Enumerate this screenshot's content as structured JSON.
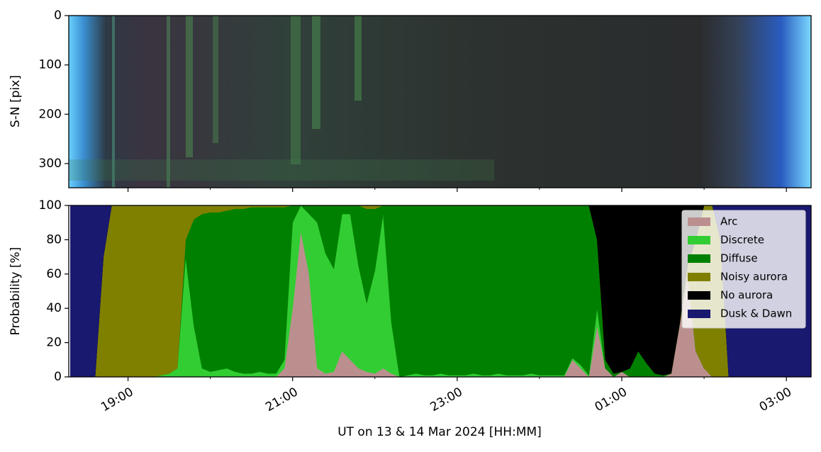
{
  "chart_data": [
    {
      "type": "image",
      "ylabel": "S-N [pix]",
      "ylim": [
        349,
        0
      ],
      "yticks": [
        0,
        100,
        200,
        300
      ],
      "xlim": [
        18.28,
        27.3
      ]
    },
    {
      "type": "stacked_area",
      "xlabel": "UT on 13 & 14 Mar 2024 [HH:MM]",
      "ylabel": "Probability [%]",
      "xlim": [
        18.28,
        27.3
      ],
      "ylim": [
        0,
        100
      ],
      "yticks": [
        0,
        20,
        40,
        60,
        80,
        100
      ],
      "xticks": [
        {
          "value": 19,
          "label": "19:00"
        },
        {
          "value": 21,
          "label": "21:00"
        },
        {
          "value": 23,
          "label": "23:00"
        },
        {
          "value": 25,
          "label": "01:00"
        },
        {
          "value": 27,
          "label": "03:00"
        }
      ],
      "xminorticks": [
        20,
        22,
        24,
        26
      ],
      "legend": "upper right",
      "x": [
        18.3,
        18.4,
        18.5,
        18.6,
        18.7,
        18.8,
        18.9,
        19.0,
        19.1,
        19.2,
        19.3,
        19.4,
        19.5,
        19.6,
        19.7,
        19.8,
        19.9,
        20.0,
        20.1,
        20.2,
        20.3,
        20.4,
        20.5,
        20.6,
        20.7,
        20.8,
        20.9,
        21.0,
        21.1,
        21.2,
        21.3,
        21.4,
        21.5,
        21.6,
        21.7,
        21.8,
        21.9,
        22.0,
        22.1,
        22.2,
        22.3,
        22.4,
        22.5,
        22.6,
        22.7,
        22.8,
        22.9,
        23.0,
        23.1,
        23.2,
        23.3,
        23.4,
        23.5,
        23.6,
        23.7,
        23.8,
        23.9,
        24.0,
        24.1,
        24.2,
        24.3,
        24.4,
        24.5,
        24.6,
        24.7,
        24.8,
        24.9,
        25.0,
        25.1,
        25.2,
        25.3,
        25.4,
        25.5,
        25.6,
        25.7,
        25.8,
        25.9,
        26.0,
        26.1,
        26.2,
        26.3,
        26.4,
        26.5,
        26.6,
        26.7,
        26.8,
        26.9,
        27.0,
        27.1,
        27.2,
        27.3
      ],
      "series": [
        {
          "name": "Arc",
          "color": "#bc8f8f",
          "values": [
            0,
            0,
            0,
            0,
            0,
            0,
            0,
            0,
            0,
            0,
            0,
            0,
            0,
            0,
            0,
            0,
            0,
            0,
            0,
            0,
            0,
            0,
            0,
            0,
            0,
            0,
            5,
            40,
            85,
            60,
            5,
            2,
            3,
            15,
            10,
            5,
            3,
            2,
            5,
            2,
            0,
            0,
            0,
            0,
            0,
            0,
            0,
            0,
            0,
            0,
            0,
            0,
            0,
            0,
            0,
            0,
            0,
            0,
            0,
            0,
            0,
            10,
            5,
            0,
            30,
            5,
            0,
            3,
            0,
            0,
            0,
            0,
            0,
            2,
            30,
            60,
            15,
            5,
            0,
            0,
            0,
            0,
            0,
            0,
            0,
            0,
            0,
            0,
            0,
            0,
            0
          ]
        },
        {
          "name": "Discrete",
          "color": "#32cd32",
          "values": [
            0,
            0,
            0,
            0,
            0,
            0,
            0,
            0,
            0,
            0,
            0,
            1,
            2,
            5,
            70,
            30,
            5,
            3,
            4,
            5,
            3,
            2,
            2,
            3,
            2,
            2,
            5,
            50,
            15,
            35,
            85,
            70,
            60,
            80,
            85,
            60,
            40,
            60,
            90,
            30,
            0,
            1,
            2,
            1,
            1,
            2,
            1,
            1,
            1,
            2,
            1,
            1,
            2,
            1,
            1,
            1,
            2,
            1,
            1,
            1,
            1,
            1,
            2,
            1,
            10,
            0,
            0,
            0,
            0,
            0,
            0,
            0,
            0,
            0,
            0,
            0,
            0,
            0,
            0,
            0,
            0,
            0,
            0,
            0,
            0,
            0,
            0,
            0,
            0,
            0,
            0
          ]
        },
        {
          "name": "Diffuse",
          "color": "#008000",
          "values": [
            0,
            0,
            0,
            0,
            0,
            0,
            0,
            0,
            0,
            0,
            0,
            0,
            0,
            0,
            10,
            62,
            90,
            93,
            92,
            92,
            95,
            96,
            97,
            96,
            97,
            97,
            89,
            10,
            0,
            5,
            10,
            28,
            37,
            5,
            5,
            35,
            55,
            36,
            5,
            68,
            100,
            99,
            98,
            99,
            99,
            98,
            99,
            99,
            99,
            98,
            99,
            99,
            98,
            99,
            99,
            99,
            98,
            99,
            99,
            99,
            99,
            89,
            93,
            99,
            40,
            5,
            2,
            0,
            5,
            15,
            8,
            2,
            1,
            0,
            0,
            0,
            0,
            0,
            0,
            0,
            0,
            0,
            0,
            0,
            0,
            0,
            0,
            0,
            0,
            0,
            0
          ]
        },
        {
          "name": "Noisy aurora",
          "color": "#808000",
          "values": [
            0,
            0,
            0,
            0,
            70,
            100,
            100,
            100,
            100,
            100,
            100,
            99,
            98,
            95,
            20,
            8,
            5,
            4,
            4,
            3,
            2,
            2,
            1,
            1,
            1,
            1,
            1,
            0,
            0,
            0,
            0,
            0,
            0,
            0,
            0,
            0,
            2,
            2,
            0,
            0,
            0,
            0,
            0,
            0,
            0,
            0,
            0,
            0,
            0,
            0,
            0,
            0,
            0,
            0,
            0,
            0,
            0,
            0,
            0,
            0,
            0,
            0,
            0,
            0,
            0,
            0,
            0,
            0,
            0,
            0,
            0,
            0,
            0,
            0,
            0,
            5,
            65,
            95,
            100,
            80,
            0,
            0,
            0,
            0,
            0,
            0,
            0,
            0,
            0,
            0,
            0
          ]
        },
        {
          "name": "No aurora",
          "color": "#000000",
          "values": [
            0,
            0,
            0,
            0,
            0,
            0,
            0,
            0,
            0,
            0,
            0,
            0,
            0,
            0,
            0,
            0,
            0,
            0,
            0,
            0,
            0,
            0,
            0,
            0,
            0,
            0,
            0,
            0,
            0,
            0,
            0,
            0,
            0,
            0,
            0,
            0,
            0,
            0,
            0,
            0,
            0,
            0,
            0,
            0,
            0,
            0,
            0,
            0,
            0,
            0,
            0,
            0,
            0,
            0,
            0,
            0,
            0,
            0,
            0,
            0,
            0,
            0,
            0,
            0,
            20,
            90,
            98,
            97,
            95,
            85,
            92,
            98,
            99,
            98,
            70,
            35,
            20,
            0,
            0,
            0,
            0,
            0,
            0,
            0,
            0,
            0,
            0,
            0,
            0,
            0,
            0
          ]
        },
        {
          "name": "Dusk & Dawn",
          "color": "#191970",
          "values": [
            100,
            100,
            100,
            100,
            30,
            0,
            0,
            0,
            0,
            0,
            0,
            0,
            0,
            0,
            0,
            0,
            0,
            0,
            0,
            0,
            0,
            0,
            0,
            0,
            0,
            0,
            0,
            0,
            0,
            0,
            0,
            0,
            0,
            0,
            0,
            0,
            0,
            0,
            0,
            0,
            0,
            0,
            0,
            0,
            0,
            0,
            0,
            0,
            0,
            0,
            0,
            0,
            0,
            0,
            0,
            0,
            0,
            0,
            0,
            0,
            0,
            0,
            0,
            0,
            0,
            0,
            0,
            0,
            0,
            0,
            0,
            0,
            0,
            0,
            0,
            0,
            0,
            0,
            0,
            20,
            100,
            100,
            100,
            100,
            100,
            100,
            100,
            100,
            100,
            100,
            100
          ]
        }
      ]
    }
  ]
}
